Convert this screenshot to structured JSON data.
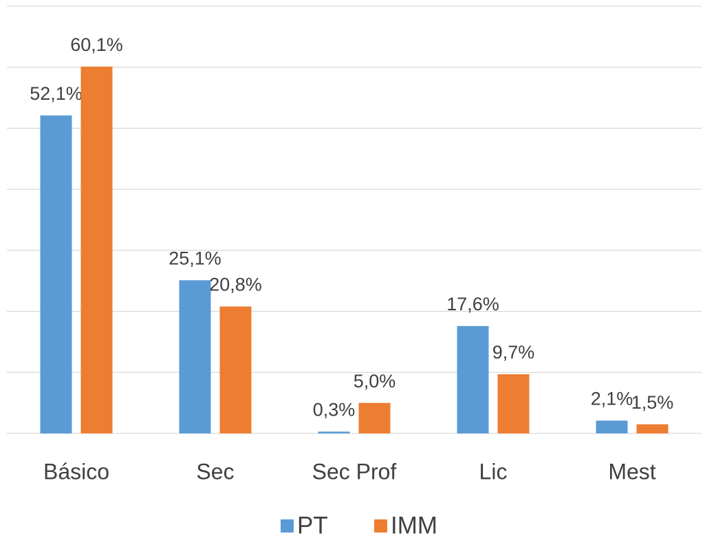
{
  "chart_data": {
    "type": "bar",
    "categories": [
      "Básico",
      "Sec",
      "Sec Prof",
      "Lic",
      "Mest"
    ],
    "series": [
      {
        "name": "PT",
        "color": "#5b9bd5",
        "values": [
          52.1,
          25.1,
          0.3,
          17.6,
          2.1
        ],
        "value_labels": [
          "52,1%",
          "25,1%",
          "0,3%",
          "17,6%",
          "2,1%"
        ]
      },
      {
        "name": "IMM",
        "color": "#ed7d31",
        "values": [
          60.1,
          20.8,
          5.0,
          9.7,
          1.5
        ],
        "value_labels": [
          "60,1%",
          "20,8%",
          "5,0%",
          "9,7%",
          "1,5%"
        ]
      }
    ],
    "ylim": [
      0,
      70
    ],
    "yticks": [
      0,
      10,
      20,
      30,
      40,
      50,
      60,
      70
    ],
    "grid": true,
    "legend": "bottom"
  }
}
